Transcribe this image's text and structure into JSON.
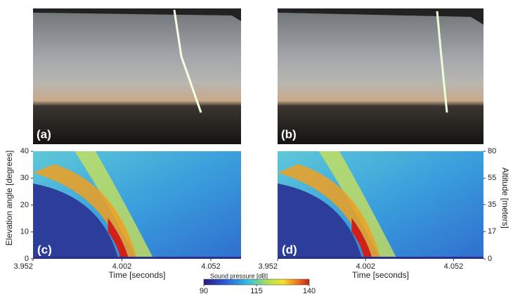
{
  "photos": [
    {
      "label": "(a)"
    },
    {
      "label": "(b)"
    }
  ],
  "chart_data": [
    {
      "type": "heatmap",
      "panel_label": "(c)",
      "xlabel": "Time [seconds]",
      "ylabel": "Elevation angle [degrees]",
      "xlim": [
        3.952,
        4.069
      ],
      "xticks": [
        3.952,
        4.002,
        4.052
      ],
      "ylim": [
        0,
        40
      ],
      "yticks": [
        0,
        10,
        20,
        30,
        40
      ]
    },
    {
      "type": "heatmap",
      "panel_label": "(d)",
      "xlabel": "Time [seconds]",
      "y2label": "Altitude [meters]",
      "xlim": [
        3.952,
        4.069
      ],
      "xticks": [
        3.952,
        4.002,
        4.052
      ],
      "ylim": [
        0,
        40
      ],
      "y2lim": [
        0,
        80
      ],
      "y2ticks": [
        0,
        17,
        35,
        55,
        80
      ]
    }
  ],
  "colorbar": {
    "label": "Sound pressure [dB]",
    "lim": [
      90,
      140
    ],
    "ticks": [
      90,
      115,
      140
    ]
  }
}
